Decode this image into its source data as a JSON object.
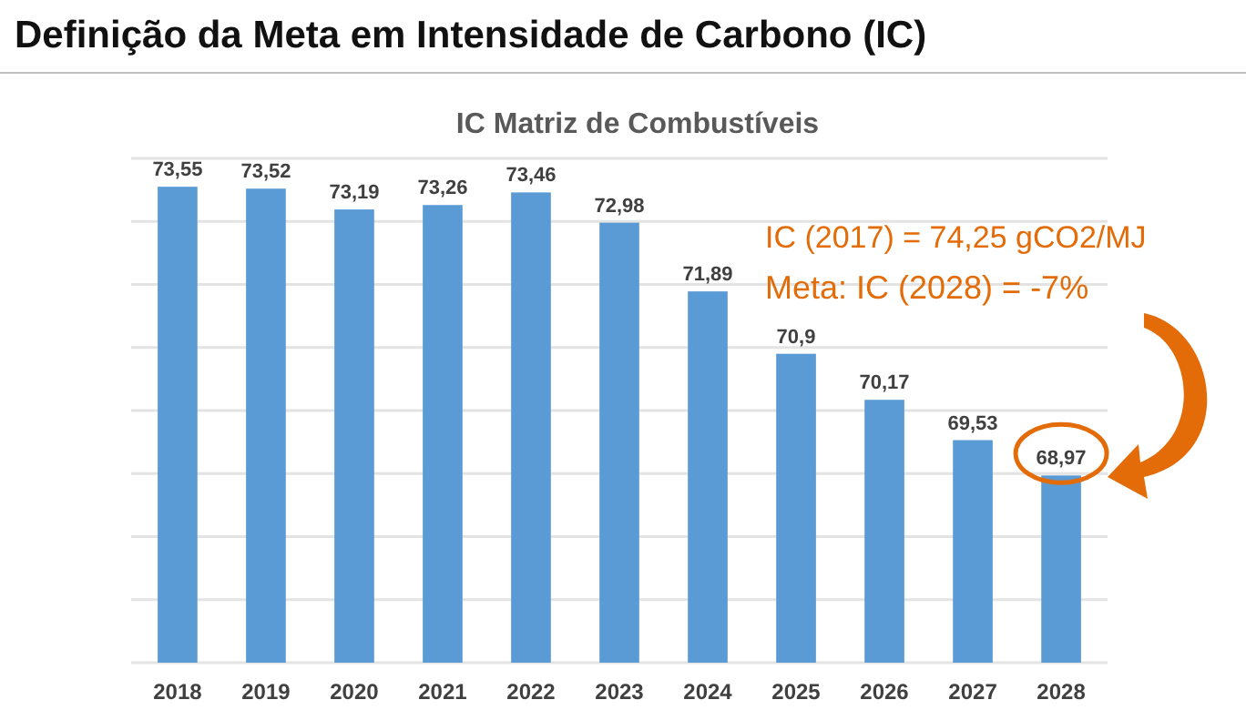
{
  "chart_data": {
    "type": "bar",
    "title": "Definição da Meta em Intensidade de Carbono (IC)",
    "subtitle": "IC Matriz de Combustíveis",
    "categories": [
      "2018",
      "2019",
      "2020",
      "2021",
      "2022",
      "2023",
      "2024",
      "2025",
      "2026",
      "2027",
      "2028"
    ],
    "values": [
      73.55,
      73.52,
      73.19,
      73.26,
      73.46,
      72.98,
      71.89,
      70.9,
      70.17,
      69.53,
      68.97
    ],
    "value_labels": [
      "73,55",
      "73,52",
      "73,19",
      "73,26",
      "73,46",
      "72,98",
      "71,89",
      "70,9",
      "70,17",
      "69,53",
      "68,97"
    ],
    "color": "#5b9bd5",
    "ylim": [
      66,
      74
    ],
    "yticks": [
      {
        "value": 66,
        "label": null
      },
      {
        "value": 67,
        "label": null
      },
      {
        "value": 68,
        "label": null
      },
      {
        "value": 69,
        "label": null
      },
      {
        "value": 70,
        "label": null
      },
      {
        "value": 71,
        "label": null
      },
      {
        "value": 72,
        "label": null
      },
      {
        "value": 73,
        "label": null
      },
      {
        "value": 74,
        "label": null
      }
    ],
    "grid": "y",
    "tick_labels": "x",
    "annotations": [
      "IC (2017) = 74,25 gCO2/MJ",
      "Meta: IC (2028) = -7%"
    ]
  }
}
